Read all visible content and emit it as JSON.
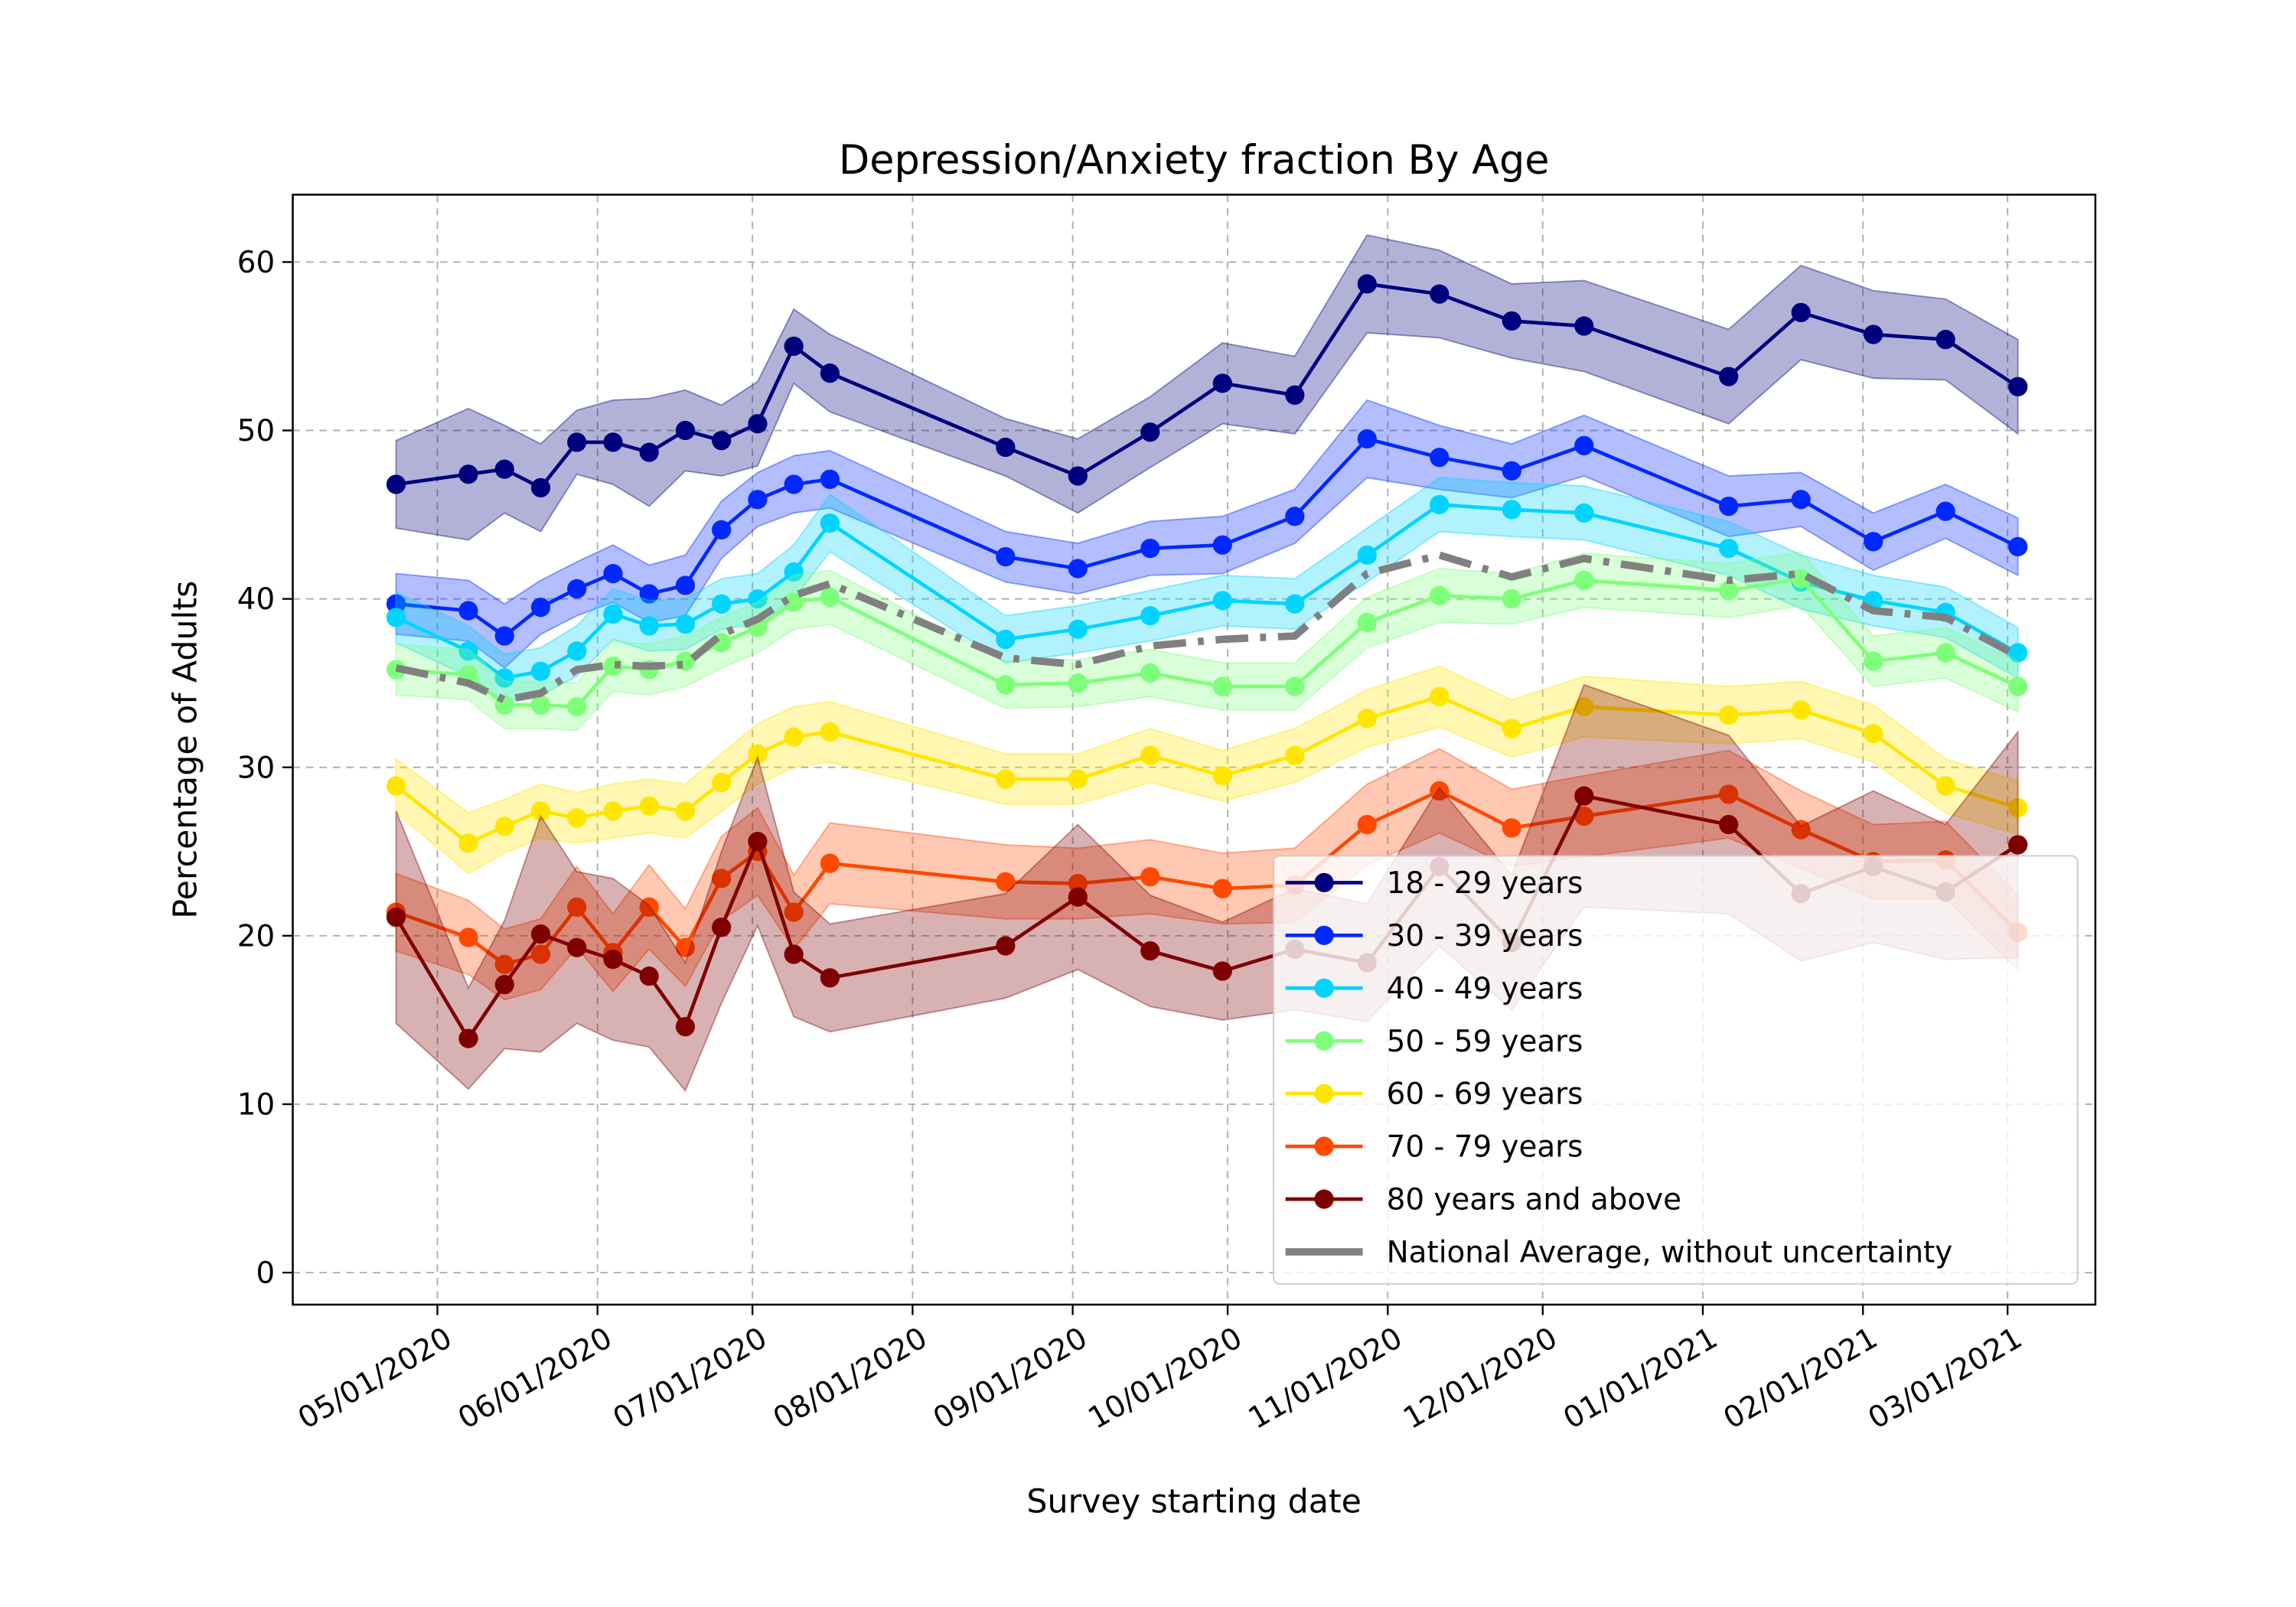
{
  "chart_data": {
    "type": "line",
    "title": "Depression/Anxiety fraction By Age",
    "xlabel": "Survey starting date",
    "ylabel": "Percentage of Adults",
    "x": [
      "2020-04-23",
      "2020-05-07",
      "2020-05-14",
      "2020-05-21",
      "2020-05-28",
      "2020-06-04",
      "2020-06-11",
      "2020-06-18",
      "2020-06-25",
      "2020-07-02",
      "2020-07-09",
      "2020-07-16",
      "2020-08-19",
      "2020-09-02",
      "2020-09-16",
      "2020-09-30",
      "2020-10-14",
      "2020-10-28",
      "2020-11-11",
      "2020-11-25",
      "2020-12-09",
      "2021-01-06",
      "2021-01-20",
      "2021-02-03",
      "2021-02-17",
      "2021-03-03"
    ],
    "xlim": [
      "2020-04-03",
      "2021-03-18"
    ],
    "xticks": [
      {
        "value": "2020-05-01",
        "label": "05/01/2020"
      },
      {
        "value": "2020-06-01",
        "label": "06/01/2020"
      },
      {
        "value": "2020-07-01",
        "label": "07/01/2020"
      },
      {
        "value": "2020-08-01",
        "label": "08/01/2020"
      },
      {
        "value": "2020-09-01",
        "label": "09/01/2020"
      },
      {
        "value": "2020-10-01",
        "label": "10/01/2020"
      },
      {
        "value": "2020-11-01",
        "label": "11/01/2020"
      },
      {
        "value": "2020-12-01",
        "label": "12/01/2020"
      },
      {
        "value": "2021-01-01",
        "label": "01/01/2021"
      },
      {
        "value": "2021-02-01",
        "label": "02/01/2021"
      },
      {
        "value": "2021-03-01",
        "label": "03/01/2021"
      }
    ],
    "ylim": [
      -1.9,
      64.0
    ],
    "yticks": [
      0,
      10,
      20,
      30,
      40,
      50,
      60
    ],
    "grid": true,
    "legend": "lower right",
    "series": [
      {
        "name": "18 - 29 years",
        "color": "#00007f",
        "values": [
          46.8,
          47.4,
          47.7,
          46.6,
          49.3,
          49.3,
          48.7,
          50.0,
          49.4,
          50.4,
          55.0,
          53.4,
          49.0,
          47.3,
          49.9,
          52.8,
          52.1,
          58.7,
          58.1,
          56.5,
          56.2,
          53.2,
          57.0,
          55.7,
          55.4,
          52.6
        ],
        "errors": [
          2.6,
          3.9,
          2.6,
          2.6,
          1.9,
          2.5,
          3.2,
          2.4,
          2.1,
          2.5,
          2.2,
          2.3,
          1.7,
          2.2,
          2.1,
          2.4,
          2.3,
          2.9,
          2.6,
          2.2,
          2.7,
          2.8,
          2.8,
          2.6,
          2.4,
          2.8
        ]
      },
      {
        "name": "30 - 39 years",
        "color": "#0028ff",
        "values": [
          39.7,
          39.3,
          37.8,
          39.5,
          40.6,
          41.5,
          40.3,
          40.8,
          44.1,
          45.9,
          46.8,
          47.1,
          42.5,
          41.8,
          43.0,
          43.2,
          44.9,
          49.5,
          48.4,
          47.6,
          49.1,
          45.5,
          45.9,
          43.4,
          45.2,
          43.1
        ],
        "errors": [
          1.8,
          1.8,
          1.9,
          1.6,
          1.6,
          1.7,
          1.7,
          1.8,
          1.7,
          1.6,
          1.7,
          1.7,
          1.5,
          1.5,
          1.6,
          1.7,
          1.6,
          2.3,
          1.9,
          1.6,
          1.8,
          1.8,
          1.6,
          1.7,
          1.6,
          1.7
        ]
      },
      {
        "name": "40 - 49 years",
        "color": "#00d4ff",
        "values": [
          38.9,
          36.9,
          35.3,
          35.7,
          36.9,
          39.1,
          38.4,
          38.5,
          39.7,
          40.0,
          41.6,
          44.5,
          37.6,
          38.2,
          39.0,
          39.9,
          39.7,
          42.6,
          45.6,
          45.3,
          45.1,
          43.0,
          41.0,
          39.9,
          39.2,
          36.8
        ],
        "errors": [
          1.5,
          1.5,
          1.4,
          1.4,
          1.5,
          1.5,
          1.5,
          1.5,
          1.5,
          1.5,
          1.6,
          1.7,
          1.4,
          1.4,
          1.5,
          1.5,
          1.5,
          1.6,
          1.6,
          1.6,
          1.6,
          1.6,
          1.6,
          1.5,
          1.5,
          1.5
        ]
      },
      {
        "name": "50 - 59 years",
        "color": "#7dff7a",
        "values": [
          35.8,
          35.5,
          33.7,
          33.7,
          33.6,
          36.0,
          35.8,
          36.3,
          37.4,
          38.3,
          39.8,
          40.1,
          34.9,
          35.0,
          35.6,
          34.8,
          34.8,
          38.6,
          40.2,
          40.0,
          41.1,
          40.5,
          41.2,
          36.3,
          36.8,
          34.8
        ],
        "errors": [
          1.5,
          1.5,
          1.4,
          1.4,
          1.4,
          1.5,
          1.5,
          1.5,
          1.5,
          1.5,
          1.6,
          1.6,
          1.4,
          1.4,
          1.4,
          1.4,
          1.4,
          1.5,
          1.6,
          1.5,
          1.6,
          1.6,
          1.6,
          1.5,
          1.5,
          1.5
        ]
      },
      {
        "name": "60 - 69 years",
        "color": "#ffe500",
        "values": [
          28.9,
          25.5,
          26.5,
          27.4,
          27.0,
          27.4,
          27.7,
          27.4,
          29.1,
          30.8,
          31.8,
          32.1,
          29.3,
          29.3,
          30.7,
          29.5,
          30.7,
          32.9,
          34.2,
          32.3,
          33.6,
          33.1,
          33.4,
          32.0,
          28.9,
          27.6
        ],
        "errors": [
          1.6,
          1.8,
          1.6,
          1.6,
          1.5,
          1.6,
          1.6,
          1.6,
          1.7,
          1.8,
          1.8,
          1.8,
          1.5,
          1.5,
          1.6,
          1.5,
          1.6,
          1.7,
          1.8,
          1.7,
          1.8,
          1.7,
          1.7,
          1.7,
          1.6,
          1.6
        ]
      },
      {
        "name": "70 - 79 years",
        "color": "#ff4800",
        "values": [
          21.4,
          19.9,
          18.3,
          18.9,
          21.7,
          19.0,
          21.7,
          19.3,
          23.4,
          25.0,
          21.4,
          24.3,
          23.2,
          23.1,
          23.5,
          22.8,
          23.0,
          26.6,
          28.6,
          26.4,
          27.1,
          28.4,
          26.3,
          24.4,
          24.5,
          20.2
        ],
        "errors": [
          2.3,
          2.2,
          2.1,
          2.1,
          2.4,
          2.3,
          2.5,
          2.3,
          2.5,
          2.6,
          2.2,
          2.4,
          2.2,
          2.1,
          2.2,
          2.1,
          2.2,
          2.4,
          2.5,
          2.3,
          2.4,
          2.6,
          2.3,
          2.2,
          2.3,
          2.2
        ]
      },
      {
        "name": "80 years and above",
        "color": "#7f0000",
        "values": [
          21.1,
          13.9,
          17.1,
          20.1,
          19.3,
          18.6,
          17.6,
          14.6,
          20.5,
          25.6,
          18.9,
          17.5,
          19.4,
          22.3,
          19.1,
          17.9,
          19.2,
          18.4,
          24.1,
          19.6,
          28.3,
          26.6,
          22.5,
          24.1,
          22.6,
          25.4
        ],
        "errors": [
          6.3,
          3.0,
          3.8,
          7.0,
          4.5,
          4.8,
          4.2,
          3.8,
          4.5,
          5.0,
          3.7,
          3.2,
          3.1,
          4.3,
          3.3,
          2.9,
          3.6,
          3.5,
          4.7,
          4.0,
          6.6,
          5.3,
          4.0,
          4.5,
          4.0,
          6.7
        ]
      },
      {
        "name": "National Average, without uncertainty",
        "color": "#808080",
        "style": "dashdot",
        "values": [
          35.9,
          35.0,
          34.0,
          34.4,
          35.8,
          36.1,
          36.0,
          36.1,
          37.9,
          38.8,
          40.2,
          40.9,
          36.5,
          36.1,
          37.2,
          37.6,
          37.8,
          41.5,
          42.6,
          41.3,
          42.4,
          41.1,
          41.5,
          39.3,
          38.9,
          36.6
        ]
      }
    ]
  }
}
